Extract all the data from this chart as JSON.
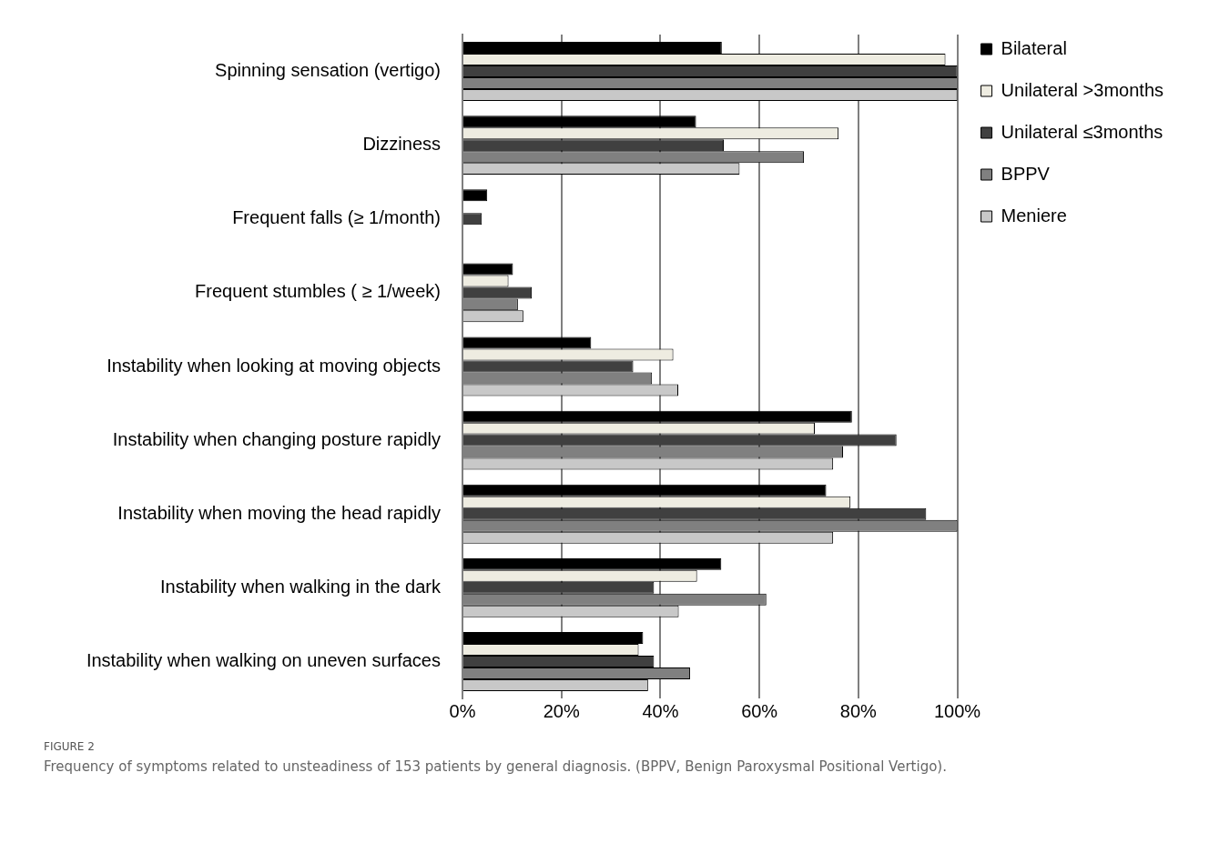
{
  "chart_data": {
    "type": "bar",
    "orientation": "horizontal",
    "categories": [
      "Spinning sensation (vertigo)",
      "Dizziness",
      "Frequent falls (≥ 1/month)",
      "Frequent stumbles ( ≥ 1/week)",
      "Instability when looking at moving objects",
      "Instability when changing posture rapidly",
      "Instability when moving the head rapidly",
      "Instability when walking in the dark",
      "Instability when walking on uneven surfaces"
    ],
    "series": [
      {
        "name": "Bilateral",
        "color": "#000000",
        "values": [
          52.4,
          47.2,
          5,
          10.2,
          26,
          78.7,
          73.5,
          52.3,
          36.5
        ]
      },
      {
        "name": "Unilateral >3months",
        "color": "#eeece1",
        "values": [
          97.6,
          76,
          0,
          9.3,
          42.6,
          71.2,
          78.4,
          47.4,
          35.6
        ]
      },
      {
        "name": "Unilateral ≤3months",
        "color": "#404040",
        "values": [
          100,
          52.8,
          3.9,
          14,
          34.5,
          87.7,
          93.7,
          38.7,
          38.7
        ]
      },
      {
        "name": "BPPV",
        "color": "#808080",
        "values": [
          100,
          69,
          0,
          11.2,
          38.3,
          76.9,
          100,
          61.4,
          46
        ]
      },
      {
        "name": "Meniere",
        "color": "#c8c8c8",
        "values": [
          100,
          56,
          0,
          12.3,
          43.6,
          74.9,
          74.9,
          43.7,
          37.5
        ]
      }
    ],
    "xlim": [
      0,
      100
    ],
    "xticks": [
      {
        "value": 0,
        "label": "0%"
      },
      {
        "value": 20,
        "label": "20%"
      },
      {
        "value": 40,
        "label": "40%"
      },
      {
        "value": 60,
        "label": "60%"
      },
      {
        "value": 80,
        "label": "80%"
      },
      {
        "value": 100,
        "label": "100%"
      }
    ],
    "grid": "x",
    "legend": "top right",
    "annotations": [
      "FIGURE 2",
      "Frequency of symptoms related to unsteadiness of 153 patients by general diagnosis. (BPPV, Benign Paroxysmal Positional Vertigo)."
    ]
  }
}
